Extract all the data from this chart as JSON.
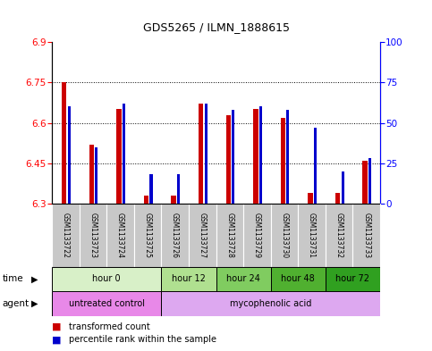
{
  "title": "GDS5265 / ILMN_1888615",
  "samples": [
    "GSM1133722",
    "GSM1133723",
    "GSM1133724",
    "GSM1133725",
    "GSM1133726",
    "GSM1133727",
    "GSM1133728",
    "GSM1133729",
    "GSM1133730",
    "GSM1133731",
    "GSM1133732",
    "GSM1133733"
  ],
  "transformed_count": [
    6.75,
    6.52,
    6.65,
    6.33,
    6.33,
    6.67,
    6.63,
    6.65,
    6.62,
    6.34,
    6.34,
    6.46
  ],
  "percentile_rank": [
    60,
    35,
    62,
    18,
    18,
    62,
    58,
    60,
    58,
    47,
    20,
    28
  ],
  "ylim_left": [
    6.3,
    6.9
  ],
  "ylim_right": [
    0,
    100
  ],
  "yticks_left": [
    6.3,
    6.45,
    6.6,
    6.75,
    6.9
  ],
  "yticks_right": [
    0,
    25,
    50,
    75,
    100
  ],
  "time_groups": [
    {
      "label": "hour 0",
      "start": 0,
      "end": 4,
      "color": "#d8f0c8"
    },
    {
      "label": "hour 12",
      "start": 4,
      "end": 6,
      "color": "#b0e090"
    },
    {
      "label": "hour 24",
      "start": 6,
      "end": 8,
      "color": "#80cc60"
    },
    {
      "label": "hour 48",
      "start": 8,
      "end": 10,
      "color": "#50b030"
    },
    {
      "label": "hour 72",
      "start": 10,
      "end": 12,
      "color": "#30a020"
    }
  ],
  "agent_groups": [
    {
      "label": "untreated control",
      "start": 0,
      "end": 4,
      "color": "#e888e8"
    },
    {
      "label": "mycophenolic acid",
      "start": 4,
      "end": 12,
      "color": "#dda8f0"
    }
  ],
  "bar_color_red": "#cc0000",
  "bar_color_blue": "#0000cc",
  "base_value": 6.3,
  "sample_bg_color": "#c8c8c8",
  "legend_red_label": "transformed count",
  "legend_blue_label": "percentile rank within the sample"
}
